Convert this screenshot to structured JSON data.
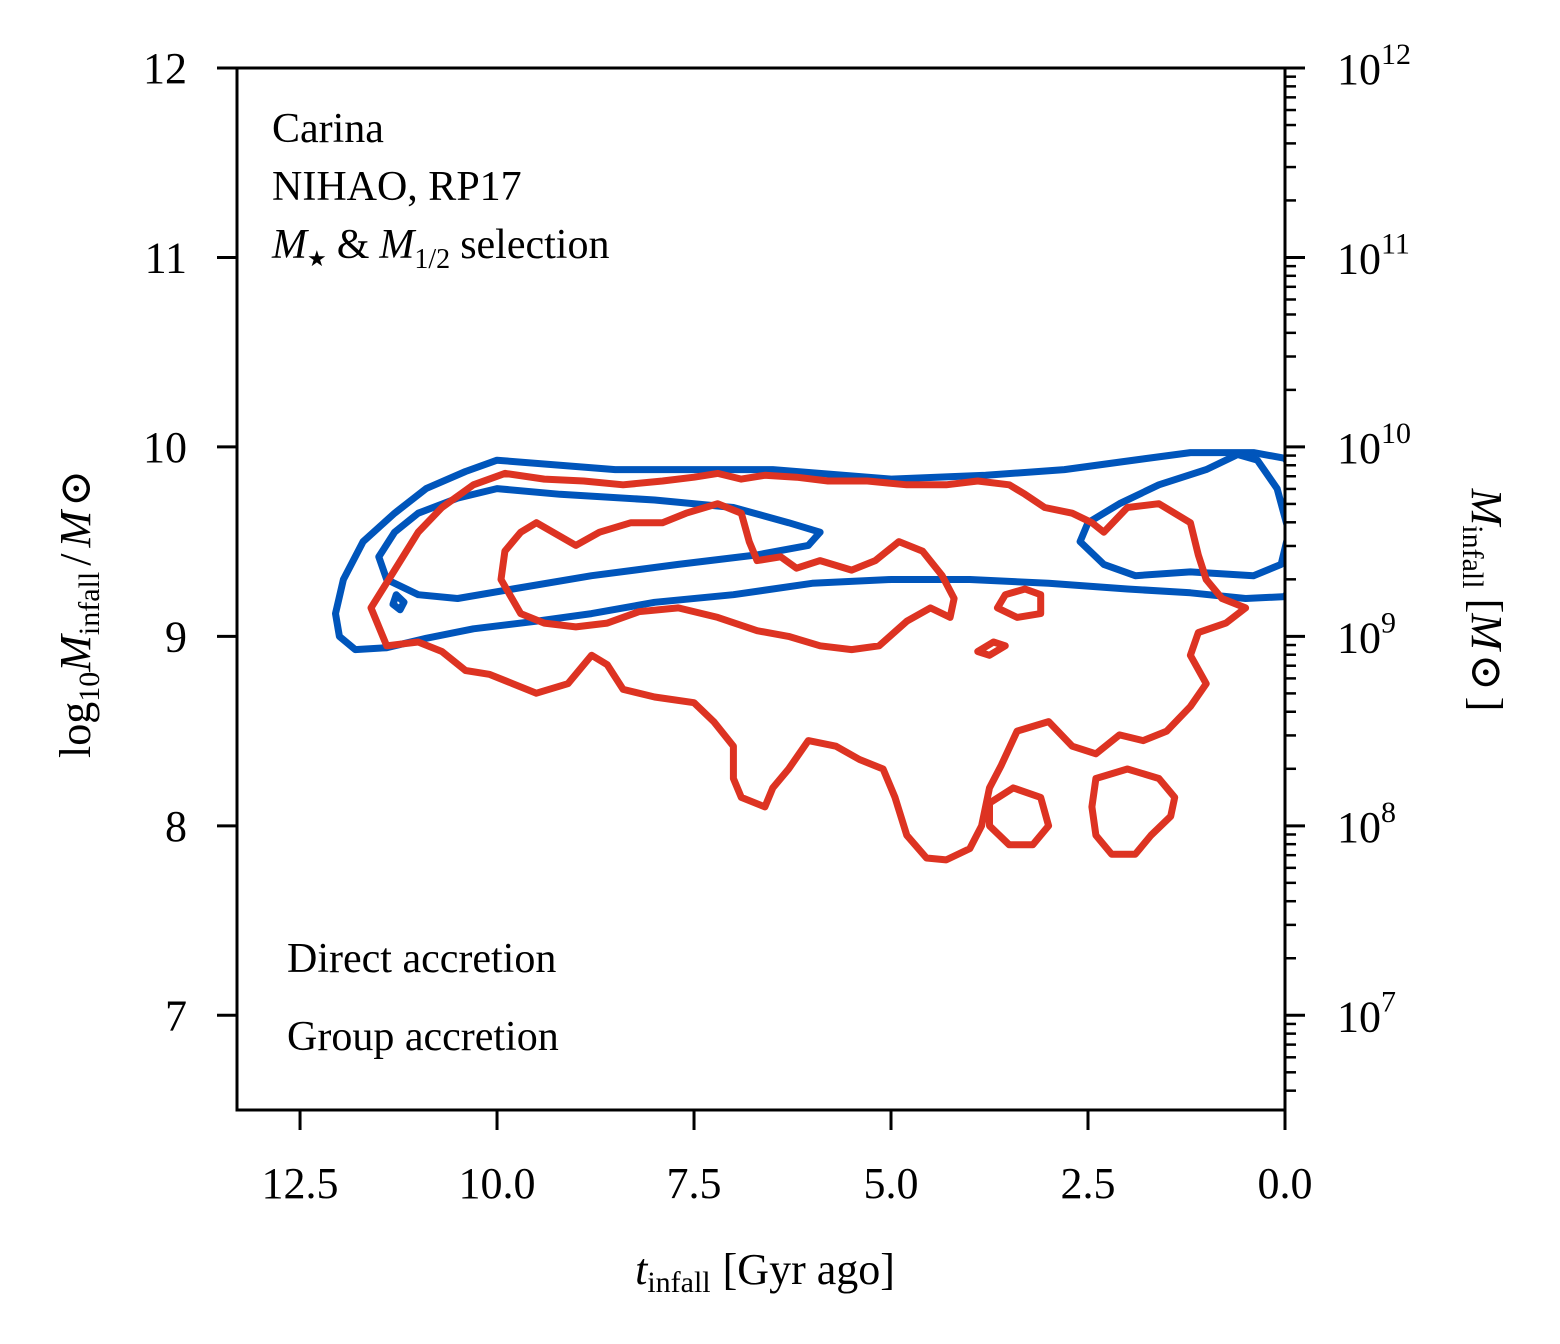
{
  "chart_data": {
    "type": "contour",
    "annotation_lines": [
      "Carina",
      "NIHAO, RP17"
    ],
    "annotation_line3": {
      "m": "M",
      "star": "★",
      "and": "&",
      "m2": "M",
      "sub": "1/2",
      "rest": "selection"
    },
    "xlabel": {
      "sym": "t",
      "sub": "infall",
      "rest": "[Gyr ago]"
    },
    "ylabel": {
      "pre": "log",
      "sub10": "10",
      "sym": "M",
      "sub": "infall",
      "slash": "/",
      "sym2": "M",
      "odot": "⊙"
    },
    "y2label": {
      "sym": "M",
      "sub": "infall",
      "rest": "[",
      "sym2": "M",
      "odot": "⊙",
      "end": "]"
    },
    "xlim": [
      13.3,
      0.0
    ],
    "ylim": [
      6.5,
      12.0
    ],
    "xticks": [
      12.5,
      10.0,
      7.5,
      5.0,
      2.5,
      0.0
    ],
    "xtick_labels": [
      "12.5",
      "10.0",
      "7.5",
      "5.0",
      "2.5",
      "0.0"
    ],
    "yticks": [
      7,
      8,
      9,
      10,
      11,
      12
    ],
    "ytick_labels": [
      "7",
      "8",
      "9",
      "10",
      "11",
      "12"
    ],
    "y2ticks": [
      {
        "value": 7,
        "base": "10",
        "exp": "7"
      },
      {
        "value": 8,
        "base": "10",
        "exp": "8"
      },
      {
        "value": 9,
        "base": "10",
        "exp": "9"
      },
      {
        "value": 10,
        "base": "10",
        "exp": "10"
      },
      {
        "value": 11,
        "base": "10",
        "exp": "11"
      },
      {
        "value": 12,
        "base": "10",
        "exp": "12"
      }
    ],
    "series": [
      {
        "name": "Direct accretion",
        "color": "#0055bb",
        "contours": [
          [
            [
              10.0,
              9.93
            ],
            [
              8.5,
              9.88
            ],
            [
              6.5,
              9.88
            ],
            [
              5.0,
              9.83
            ],
            [
              3.8,
              9.85
            ],
            [
              2.8,
              9.88
            ],
            [
              2.1,
              9.92
            ],
            [
              1.2,
              9.97
            ],
            [
              0.4,
              9.97
            ],
            [
              0.0,
              9.94
            ],
            [
              -0.2,
              9.8
            ],
            [
              -0.2,
              9.35
            ],
            [
              0.0,
              9.21
            ],
            [
              0.5,
              9.2
            ],
            [
              1.2,
              9.23
            ],
            [
              2.0,
              9.25
            ],
            [
              3.0,
              9.28
            ],
            [
              4.0,
              9.3
            ],
            [
              5.0,
              9.3
            ],
            [
              6.0,
              9.28
            ],
            [
              7.0,
              9.22
            ],
            [
              8.0,
              9.18
            ],
            [
              8.8,
              9.12
            ],
            [
              9.5,
              9.08
            ],
            [
              10.3,
              9.04
            ],
            [
              10.9,
              8.99
            ],
            [
              11.4,
              8.94
            ],
            [
              11.8,
              8.93
            ],
            [
              12.0,
              9.0
            ],
            [
              12.05,
              9.12
            ],
            [
              11.95,
              9.3
            ],
            [
              11.7,
              9.5
            ],
            [
              11.3,
              9.65
            ],
            [
              10.9,
              9.78
            ],
            [
              10.4,
              9.87
            ],
            [
              10.0,
              9.93
            ]
          ],
          [
            [
              10.0,
              9.78
            ],
            [
              9.2,
              9.75
            ],
            [
              8.0,
              9.72
            ],
            [
              7.0,
              9.68
            ],
            [
              6.3,
              9.6
            ],
            [
              5.9,
              9.55
            ],
            [
              6.05,
              9.48
            ],
            [
              6.7,
              9.43
            ],
            [
              7.7,
              9.38
            ],
            [
              8.8,
              9.32
            ],
            [
              9.8,
              9.25
            ],
            [
              10.5,
              9.2
            ],
            [
              11.0,
              9.22
            ],
            [
              11.4,
              9.3
            ],
            [
              11.5,
              9.42
            ],
            [
              11.3,
              9.55
            ],
            [
              11.0,
              9.65
            ],
            [
              10.5,
              9.73
            ],
            [
              10.0,
              9.78
            ]
          ],
          [
            [
              11.28,
              9.22
            ],
            [
              11.18,
              9.18
            ],
            [
              11.23,
              9.14
            ],
            [
              11.32,
              9.17
            ],
            [
              11.28,
              9.22
            ]
          ],
          [
            [
              1.6,
              9.8
            ],
            [
              1.0,
              9.88
            ],
            [
              0.6,
              9.96
            ],
            [
              0.35,
              9.93
            ],
            [
              0.1,
              9.78
            ],
            [
              -0.05,
              9.55
            ],
            [
              0.05,
              9.38
            ],
            [
              0.4,
              9.32
            ],
            [
              1.2,
              9.34
            ],
            [
              1.9,
              9.32
            ],
            [
              2.3,
              9.38
            ],
            [
              2.6,
              9.5
            ],
            [
              2.5,
              9.6
            ],
            [
              2.1,
              9.7
            ],
            [
              1.6,
              9.8
            ]
          ]
        ]
      },
      {
        "name": "Group accretion",
        "color": "#dd3322",
        "contours": [
          [
            [
              11.6,
              9.15
            ],
            [
              11.3,
              9.35
            ],
            [
              11.0,
              9.55
            ],
            [
              10.7,
              9.68
            ],
            [
              10.3,
              9.8
            ],
            [
              9.9,
              9.86
            ],
            [
              9.4,
              9.83
            ],
            [
              8.9,
              9.82
            ],
            [
              8.4,
              9.8
            ],
            [
              7.9,
              9.82
            ],
            [
              7.5,
              9.84
            ],
            [
              7.2,
              9.86
            ],
            [
              6.9,
              9.83
            ],
            [
              6.6,
              9.85
            ],
            [
              6.2,
              9.84
            ],
            [
              5.8,
              9.82
            ],
            [
              5.3,
              9.82
            ],
            [
              4.8,
              9.8
            ],
            [
              4.3,
              9.8
            ],
            [
              3.9,
              9.82
            ],
            [
              3.5,
              9.8
            ],
            [
              3.3,
              9.75
            ],
            [
              3.05,
              9.68
            ],
            [
              2.7,
              9.65
            ],
            [
              2.45,
              9.6
            ],
            [
              2.3,
              9.55
            ],
            [
              2.0,
              9.68
            ],
            [
              1.6,
              9.7
            ],
            [
              1.2,
              9.6
            ],
            [
              1.1,
              9.43
            ],
            [
              1.0,
              9.3
            ],
            [
              0.8,
              9.2
            ],
            [
              0.5,
              9.15
            ],
            [
              0.75,
              9.07
            ],
            [
              1.1,
              9.02
            ],
            [
              1.2,
              8.9
            ],
            [
              1.0,
              8.75
            ],
            [
              1.2,
              8.63
            ],
            [
              1.5,
              8.5
            ],
            [
              1.8,
              8.45
            ],
            [
              2.1,
              8.48
            ],
            [
              2.4,
              8.38
            ],
            [
              2.7,
              8.42
            ],
            [
              3.0,
              8.55
            ],
            [
              3.4,
              8.5
            ],
            [
              3.6,
              8.32
            ],
            [
              3.75,
              8.2
            ],
            [
              3.85,
              8.0
            ],
            [
              4.0,
              7.88
            ],
            [
              4.3,
              7.82
            ],
            [
              4.55,
              7.83
            ],
            [
              4.8,
              7.95
            ],
            [
              4.95,
              8.15
            ],
            [
              5.1,
              8.3
            ],
            [
              5.4,
              8.35
            ],
            [
              5.7,
              8.42
            ],
            [
              6.05,
              8.45
            ],
            [
              6.3,
              8.3
            ],
            [
              6.5,
              8.2
            ],
            [
              6.6,
              8.1
            ],
            [
              6.9,
              8.15
            ],
            [
              7.0,
              8.25
            ],
            [
              7.0,
              8.42
            ],
            [
              7.25,
              8.55
            ],
            [
              7.5,
              8.65
            ],
            [
              8.0,
              8.68
            ],
            [
              8.4,
              8.72
            ],
            [
              8.6,
              8.85
            ],
            [
              8.8,
              8.9
            ],
            [
              9.1,
              8.75
            ],
            [
              9.5,
              8.7
            ],
            [
              9.8,
              8.75
            ],
            [
              10.1,
              8.8
            ],
            [
              10.4,
              8.82
            ],
            [
              10.7,
              8.92
            ],
            [
              11.0,
              8.97
            ],
            [
              11.4,
              8.95
            ],
            [
              11.6,
              9.15
            ]
          ],
          [
            [
              9.5,
              9.6
            ],
            [
              9.0,
              9.48
            ],
            [
              8.7,
              9.55
            ],
            [
              8.3,
              9.6
            ],
            [
              7.9,
              9.6
            ],
            [
              7.6,
              9.65
            ],
            [
              7.2,
              9.7
            ],
            [
              6.9,
              9.65
            ],
            [
              6.8,
              9.5
            ],
            [
              6.7,
              9.4
            ],
            [
              6.4,
              9.42
            ],
            [
              6.2,
              9.36
            ],
            [
              5.9,
              9.4
            ],
            [
              5.5,
              9.35
            ],
            [
              5.2,
              9.4
            ],
            [
              4.9,
              9.5
            ],
            [
              4.6,
              9.45
            ],
            [
              4.35,
              9.32
            ],
            [
              4.2,
              9.2
            ],
            [
              4.25,
              9.1
            ],
            [
              4.5,
              9.15
            ],
            [
              4.8,
              9.08
            ],
            [
              5.15,
              8.95
            ],
            [
              5.5,
              8.93
            ],
            [
              5.9,
              8.95
            ],
            [
              6.3,
              9.0
            ],
            [
              6.7,
              9.03
            ],
            [
              7.2,
              9.1
            ],
            [
              7.7,
              9.15
            ],
            [
              8.2,
              9.13
            ],
            [
              8.6,
              9.07
            ],
            [
              9.0,
              9.05
            ],
            [
              9.4,
              9.07
            ],
            [
              9.7,
              9.12
            ],
            [
              9.95,
              9.3
            ],
            [
              9.9,
              9.45
            ],
            [
              9.7,
              9.55
            ],
            [
              9.5,
              9.6
            ]
          ],
          [
            [
              3.55,
              9.22
            ],
            [
              3.3,
              9.25
            ],
            [
              3.1,
              9.22
            ],
            [
              3.1,
              9.12
            ],
            [
              3.4,
              9.1
            ],
            [
              3.65,
              9.15
            ],
            [
              3.55,
              9.22
            ]
          ],
          [
            [
              3.9,
              8.92
            ],
            [
              3.7,
              8.97
            ],
            [
              3.55,
              8.95
            ],
            [
              3.75,
              8.9
            ],
            [
              3.9,
              8.92
            ]
          ],
          [
            [
              3.45,
              8.2
            ],
            [
              3.1,
              8.15
            ],
            [
              3.0,
              8.0
            ],
            [
              3.2,
              7.9
            ],
            [
              3.5,
              7.9
            ],
            [
              3.75,
              8.0
            ],
            [
              3.75,
              8.12
            ],
            [
              3.45,
              8.2
            ]
          ],
          [
            [
              2.0,
              8.3
            ],
            [
              1.6,
              8.25
            ],
            [
              1.4,
              8.15
            ],
            [
              1.45,
              8.05
            ],
            [
              1.7,
              7.95
            ],
            [
              1.9,
              7.85
            ],
            [
              2.2,
              7.85
            ],
            [
              2.4,
              7.95
            ],
            [
              2.45,
              8.1
            ],
            [
              2.4,
              8.25
            ],
            [
              2.0,
              8.3
            ]
          ]
        ]
      }
    ]
  }
}
